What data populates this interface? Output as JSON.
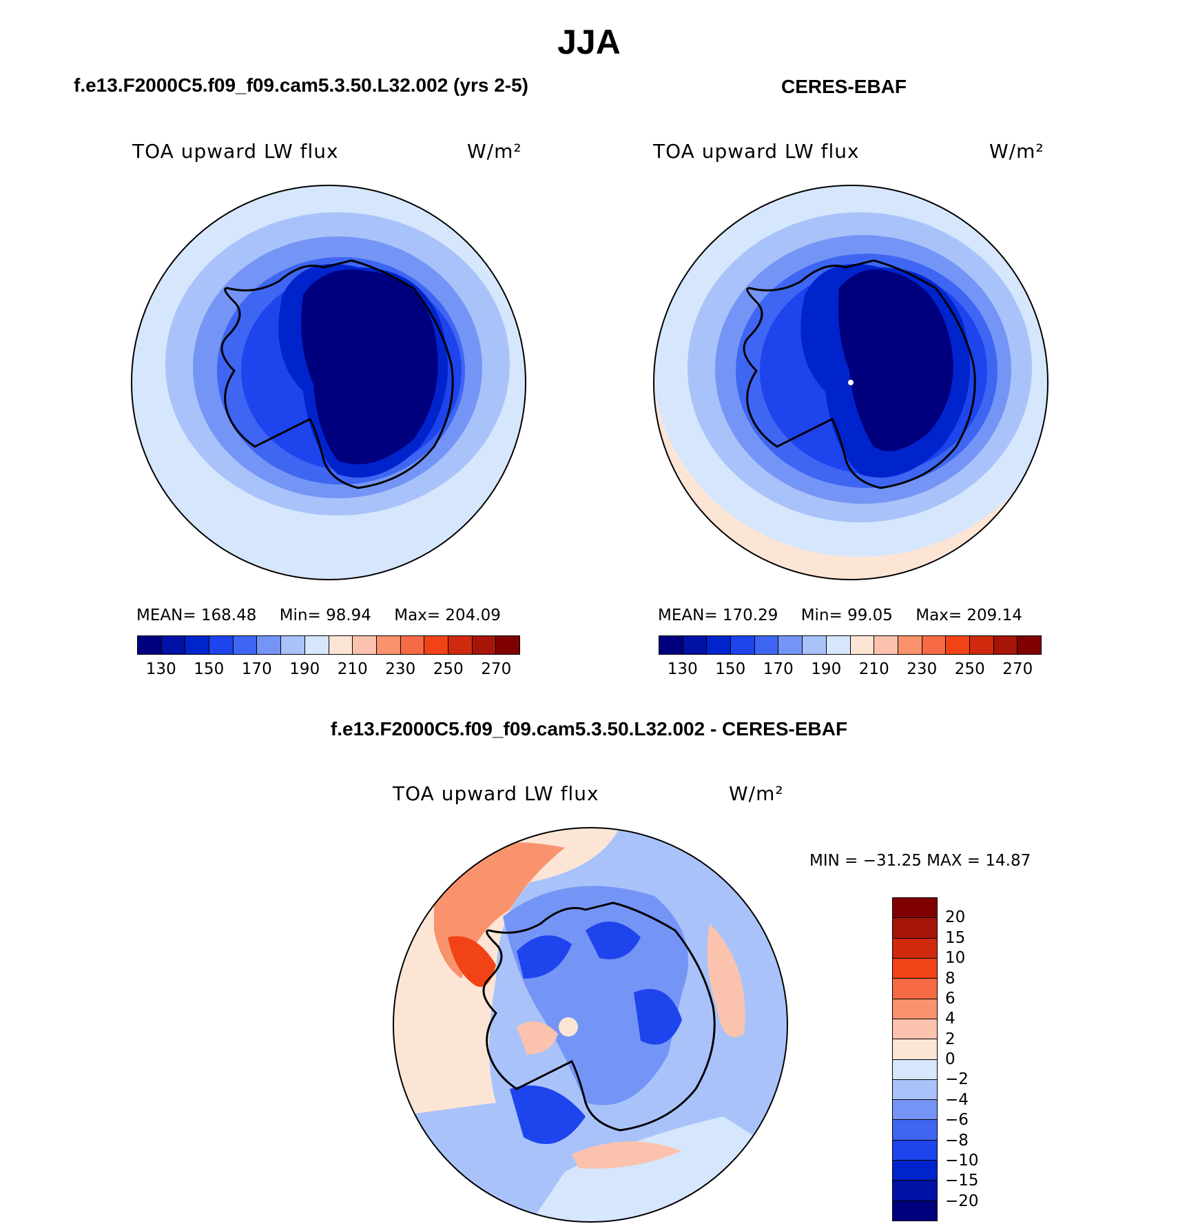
{
  "figure": {
    "season": "JJA",
    "panels": [
      {
        "title": "f.e13.F2000C5.f09_f09.cam5.3.50.L32.002 (yrs 2-5)",
        "variable": "TOA upward LW flux",
        "units": "W/m²",
        "mean_text": "MEAN= 168.48",
        "min_text": "Min=   98.94",
        "max_text": "Max= 204.09"
      },
      {
        "title": "CERES-EBAF",
        "variable": "TOA upward LW flux",
        "units": "W/m²",
        "mean_text": "MEAN= 170.29",
        "min_text": "Min=   99.05",
        "max_text": "Max= 209.14"
      }
    ],
    "difference": {
      "title": "f.e13.F2000C5.f09_f09.cam5.3.50.L32.002 - CERES-EBAF",
      "variable": "TOA upward LW flux",
      "units": "W/m²",
      "minmax_text": "MIN =  −31.25 MAX =   14.87"
    },
    "abs_colorbar": {
      "colors": [
        "#00007f",
        "#0012a5",
        "#0024cc",
        "#1e44ee",
        "#3f66f2",
        "#7595f6",
        "#a9c3fa",
        "#d6e6fc",
        "#fde5d6",
        "#fbc3ad",
        "#f8936d",
        "#f66a45",
        "#f24317",
        "#cf2a0d",
        "#a61507",
        "#800000"
      ],
      "tick_labels": [
        "130",
        "150",
        "170",
        "190",
        "210",
        "230",
        "250",
        "270"
      ]
    },
    "diff_colorbar": {
      "colors": [
        "#800000",
        "#a61507",
        "#cf2a0d",
        "#f24317",
        "#f66a45",
        "#f8936d",
        "#fbc3ad",
        "#fde5d6",
        "#d6e6fc",
        "#a9c3fa",
        "#7595f6",
        "#3f66f2",
        "#1e44ee",
        "#0024cc",
        "#0012a5",
        "#00007f"
      ],
      "tick_labels": [
        "20",
        "15",
        "10",
        "8",
        "6",
        "4",
        "2",
        "0",
        "−2",
        "−4",
        "−6",
        "−8",
        "−10",
        "−15",
        "−20"
      ]
    }
  }
}
